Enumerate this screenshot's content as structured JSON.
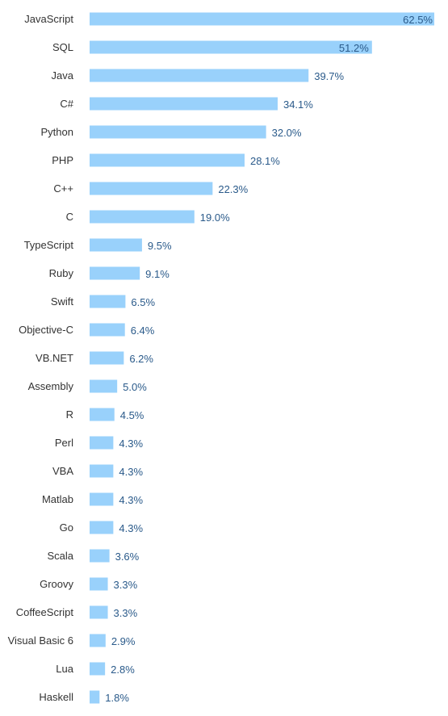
{
  "colors": {
    "bar": "#99d1fb",
    "category_text": "#333333",
    "value_text": "#2a5a8a"
  },
  "chart_data": {
    "type": "bar",
    "orientation": "horizontal",
    "title": "",
    "xlabel": "",
    "ylabel": "",
    "xlim": [
      0,
      62.5
    ],
    "grid": false,
    "categories": [
      "JavaScript",
      "SQL",
      "Java",
      "C#",
      "Python",
      "PHP",
      "C++",
      "C",
      "TypeScript",
      "Ruby",
      "Swift",
      "Objective-C",
      "VB.NET",
      "Assembly",
      "R",
      "Perl",
      "VBA",
      "Matlab",
      "Go",
      "Scala",
      "Groovy",
      "CoffeeScript",
      "Visual Basic 6",
      "Lua",
      "Haskell"
    ],
    "values": [
      62.5,
      51.2,
      39.7,
      34.1,
      32.0,
      28.1,
      22.3,
      19.0,
      9.5,
      9.1,
      6.5,
      6.4,
      6.2,
      5.0,
      4.5,
      4.3,
      4.3,
      4.3,
      4.3,
      3.6,
      3.3,
      3.3,
      2.9,
      2.8,
      1.8
    ],
    "value_labels": [
      "62.5%",
      "51.2%",
      "39.7%",
      "34.1%",
      "32.0%",
      "28.1%",
      "22.3%",
      "19.0%",
      "9.5%",
      "9.1%",
      "6.5%",
      "6.4%",
      "6.2%",
      "5.0%",
      "4.5%",
      "4.3%",
      "4.3%",
      "4.3%",
      "4.3%",
      "3.6%",
      "3.3%",
      "3.3%",
      "2.9%",
      "2.8%",
      "1.8%"
    ]
  }
}
